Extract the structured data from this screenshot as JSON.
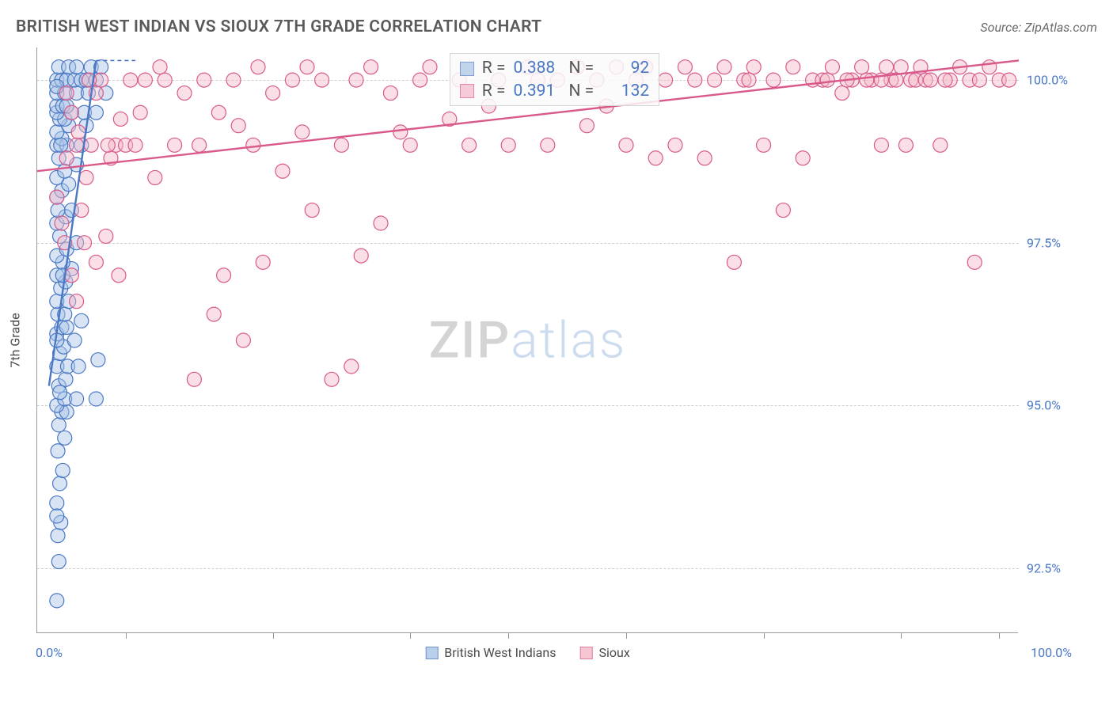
{
  "header": {
    "title": "BRITISH WEST INDIAN VS SIOUX 7TH GRADE CORRELATION CHART",
    "source": "Source: ZipAtlas.com"
  },
  "chart": {
    "type": "scatter",
    "ylabel": "7th Grade",
    "xlim": [
      0,
      100
    ],
    "ylim": [
      91.5,
      100.5
    ],
    "ymax_display": 100.3,
    "y_ticks": [
      92.5,
      95.0,
      97.5,
      100.0
    ],
    "y_tick_labels": [
      "92.5%",
      "95.0%",
      "97.5%",
      "100.0%"
    ],
    "x_ticks": [
      0,
      9.5,
      47.5,
      100
    ],
    "x_axis_labels": {
      "left": "0.0%",
      "right": "100.0%"
    },
    "bottom_tick_positions_pct": [
      9,
      24,
      38,
      48,
      60,
      74,
      88,
      98
    ],
    "background_color": "#ffffff",
    "grid_color": "#cfcfcf",
    "marker_radius": 9,
    "marker_stroke_width": 1.2,
    "series": [
      {
        "name": "British West Indians",
        "fill": "#a8c4e6",
        "fill_opacity": 0.45,
        "stroke": "#4a78c4",
        "r": 0.388,
        "n": 92,
        "trend": {
          "x1": 1.2,
          "y1": 95.3,
          "x2": 6.0,
          "y2": 100.3,
          "dash_to_x": 10.0
        },
        "points": [
          [
            2.0,
            92.0
          ],
          [
            2.2,
            92.6
          ],
          [
            2.1,
            93.0
          ],
          [
            2.4,
            93.2
          ],
          [
            2.0,
            93.5
          ],
          [
            2.3,
            93.8
          ],
          [
            2.6,
            94.0
          ],
          [
            2.1,
            94.3
          ],
          [
            2.8,
            94.5
          ],
          [
            2.2,
            94.7
          ],
          [
            2.5,
            94.9
          ],
          [
            3.0,
            94.9
          ],
          [
            2.0,
            95.0
          ],
          [
            2.8,
            95.1
          ],
          [
            4.0,
            95.1
          ],
          [
            6.0,
            95.1
          ],
          [
            2.2,
            95.3
          ],
          [
            2.9,
            95.4
          ],
          [
            2.0,
            95.6
          ],
          [
            3.1,
            95.6
          ],
          [
            4.2,
            95.6
          ],
          [
            6.2,
            95.7
          ],
          [
            2.3,
            95.8
          ],
          [
            2.7,
            95.9
          ],
          [
            3.8,
            96.0
          ],
          [
            2.0,
            96.1
          ],
          [
            2.5,
            96.2
          ],
          [
            3.0,
            96.2
          ],
          [
            4.5,
            96.3
          ],
          [
            2.1,
            96.4
          ],
          [
            2.8,
            96.4
          ],
          [
            2.0,
            96.6
          ],
          [
            3.2,
            96.6
          ],
          [
            2.4,
            96.8
          ],
          [
            2.9,
            96.9
          ],
          [
            2.0,
            97.0
          ],
          [
            3.5,
            97.1
          ],
          [
            2.6,
            97.2
          ],
          [
            2.0,
            97.3
          ],
          [
            3.0,
            97.4
          ],
          [
            4.0,
            97.5
          ],
          [
            2.3,
            97.6
          ],
          [
            2.0,
            97.8
          ],
          [
            2.9,
            97.9
          ],
          [
            3.5,
            98.0
          ],
          [
            2.0,
            98.2
          ],
          [
            2.5,
            98.3
          ],
          [
            3.2,
            98.4
          ],
          [
            2.0,
            98.5
          ],
          [
            2.8,
            98.6
          ],
          [
            4.0,
            98.7
          ],
          [
            2.2,
            98.8
          ],
          [
            2.0,
            99.0
          ],
          [
            3.0,
            99.0
          ],
          [
            4.5,
            99.0
          ],
          [
            2.5,
            99.1
          ],
          [
            2.0,
            99.2
          ],
          [
            3.2,
            99.3
          ],
          [
            5.0,
            99.3
          ],
          [
            2.3,
            99.4
          ],
          [
            2.8,
            99.4
          ],
          [
            2.0,
            99.5
          ],
          [
            3.5,
            99.5
          ],
          [
            4.8,
            99.5
          ],
          [
            6.0,
            99.5
          ],
          [
            2.0,
            99.6
          ],
          [
            2.6,
            99.6
          ],
          [
            3.0,
            99.6
          ],
          [
            2.0,
            99.8
          ],
          [
            2.8,
            99.8
          ],
          [
            4.0,
            99.8
          ],
          [
            5.2,
            99.8
          ],
          [
            7.0,
            99.8
          ],
          [
            2.0,
            100.0
          ],
          [
            2.5,
            100.0
          ],
          [
            3.0,
            100.0
          ],
          [
            3.8,
            100.0
          ],
          [
            4.5,
            100.0
          ],
          [
            5.0,
            100.0
          ],
          [
            6.0,
            100.0
          ],
          [
            2.2,
            100.2
          ],
          [
            3.2,
            100.2
          ],
          [
            4.0,
            100.2
          ],
          [
            5.5,
            100.2
          ],
          [
            6.5,
            100.2
          ],
          [
            2.0,
            99.9
          ],
          [
            2.4,
            99.0
          ],
          [
            2.1,
            98.0
          ],
          [
            2.6,
            97.0
          ],
          [
            2.0,
            96.0
          ],
          [
            2.3,
            95.2
          ],
          [
            2.0,
            93.3
          ]
        ]
      },
      {
        "name": "Sioux",
        "fill": "#f5b8c8",
        "fill_opacity": 0.45,
        "stroke": "#d95a8a",
        "r": 0.391,
        "n": 132,
        "trend": {
          "x1": 0,
          "y1": 98.6,
          "x2": 100,
          "y2": 100.3
        },
        "points": [
          [
            2.0,
            98.2
          ],
          [
            2.5,
            97.8
          ],
          [
            2.8,
            97.5
          ],
          [
            3.0,
            99.8
          ],
          [
            3.5,
            97.0
          ],
          [
            4.0,
            96.6
          ],
          [
            4.2,
            99.2
          ],
          [
            4.5,
            98.0
          ],
          [
            5.0,
            98.5
          ],
          [
            5.5,
            99.0
          ],
          [
            6.0,
            97.2
          ],
          [
            6.5,
            100.0
          ],
          [
            7.0,
            97.6
          ],
          [
            7.5,
            98.8
          ],
          [
            8.0,
            99.0
          ],
          [
            8.5,
            99.4
          ],
          [
            9.0,
            99.0
          ],
          [
            10.0,
            99.0
          ],
          [
            10.5,
            99.5
          ],
          [
            11.0,
            100.0
          ],
          [
            12.0,
            98.5
          ],
          [
            12.5,
            100.2
          ],
          [
            13.0,
            100.0
          ],
          [
            14.0,
            99.0
          ],
          [
            15.0,
            99.8
          ],
          [
            16.0,
            95.4
          ],
          [
            16.5,
            99.0
          ],
          [
            17.0,
            100.0
          ],
          [
            18.0,
            96.4
          ],
          [
            18.5,
            99.5
          ],
          [
            19.0,
            97.0
          ],
          [
            20.0,
            100.0
          ],
          [
            20.5,
            99.3
          ],
          [
            21.0,
            96.0
          ],
          [
            22.0,
            99.0
          ],
          [
            22.5,
            100.2
          ],
          [
            23.0,
            97.2
          ],
          [
            24.0,
            99.8
          ],
          [
            25.0,
            98.6
          ],
          [
            26.0,
            100.0
          ],
          [
            27.0,
            99.2
          ],
          [
            27.5,
            100.2
          ],
          [
            28.0,
            98.0
          ],
          [
            29.0,
            100.0
          ],
          [
            30.0,
            95.4
          ],
          [
            31.0,
            99.0
          ],
          [
            32.0,
            95.6
          ],
          [
            32.5,
            100.0
          ],
          [
            33.0,
            97.3
          ],
          [
            34.0,
            100.2
          ],
          [
            35.0,
            97.8
          ],
          [
            36.0,
            99.8
          ],
          [
            37.0,
            99.2
          ],
          [
            38.0,
            99.0
          ],
          [
            39.0,
            100.0
          ],
          [
            40.0,
            100.2
          ],
          [
            42.0,
            99.4
          ],
          [
            43.0,
            100.0
          ],
          [
            44.0,
            99.0
          ],
          [
            46.0,
            99.6
          ],
          [
            47.0,
            100.0
          ],
          [
            48.0,
            99.0
          ],
          [
            50.0,
            100.2
          ],
          [
            51.0,
            100.0
          ],
          [
            52.0,
            99.0
          ],
          [
            53.0,
            100.0
          ],
          [
            55.0,
            100.2
          ],
          [
            56.0,
            99.3
          ],
          [
            57.0,
            100.0
          ],
          [
            58.0,
            99.6
          ],
          [
            59.0,
            100.2
          ],
          [
            60.0,
            99.0
          ],
          [
            61.0,
            100.0
          ],
          [
            62.0,
            100.2
          ],
          [
            63.0,
            98.8
          ],
          [
            64.0,
            100.0
          ],
          [
            65.0,
            99.0
          ],
          [
            66.0,
            100.2
          ],
          [
            67.0,
            100.0
          ],
          [
            68.0,
            98.8
          ],
          [
            69.0,
            100.0
          ],
          [
            70.0,
            100.2
          ],
          [
            71.0,
            97.2
          ],
          [
            72.0,
            100.0
          ],
          [
            73.0,
            100.2
          ],
          [
            74.0,
            99.0
          ],
          [
            75.0,
            100.0
          ],
          [
            76.0,
            98.0
          ],
          [
            77.0,
            100.2
          ],
          [
            78.0,
            98.8
          ],
          [
            79.0,
            100.0
          ],
          [
            80.0,
            100.0
          ],
          [
            81.0,
            100.2
          ],
          [
            82.0,
            99.8
          ],
          [
            83.0,
            100.0
          ],
          [
            84.0,
            100.2
          ],
          [
            85.0,
            100.0
          ],
          [
            86.0,
            99.0
          ],
          [
            86.5,
            100.2
          ],
          [
            87.0,
            100.0
          ],
          [
            87.5,
            100.0
          ],
          [
            88.0,
            100.2
          ],
          [
            88.5,
            99.0
          ],
          [
            89.0,
            100.0
          ],
          [
            89.5,
            100.0
          ],
          [
            90.0,
            100.2
          ],
          [
            90.5,
            100.0
          ],
          [
            91.0,
            100.0
          ],
          [
            92.0,
            99.0
          ],
          [
            93.0,
            100.0
          ],
          [
            94.0,
            100.2
          ],
          [
            95.0,
            100.0
          ],
          [
            95.5,
            97.2
          ],
          [
            96.0,
            100.0
          ],
          [
            97.0,
            100.2
          ],
          [
            98.0,
            100.0
          ],
          [
            99.0,
            100.0
          ],
          [
            92.5,
            100.0
          ],
          [
            86.0,
            100.0
          ],
          [
            84.5,
            100.0
          ],
          [
            82.5,
            100.0
          ],
          [
            80.5,
            100.0
          ],
          [
            72.5,
            100.0
          ],
          [
            3.0,
            98.8
          ],
          [
            3.5,
            99.5
          ],
          [
            4.0,
            99.0
          ],
          [
            4.8,
            97.5
          ],
          [
            5.3,
            100.0
          ],
          [
            6.0,
            99.8
          ],
          [
            7.2,
            99.0
          ],
          [
            8.3,
            97.0
          ],
          [
            9.5,
            100.0
          ]
        ]
      }
    ],
    "legend": {
      "items": [
        {
          "label": "British West Indians",
          "fill": "#a8c4e6",
          "stroke": "#4a78c4"
        },
        {
          "label": "Sioux",
          "fill": "#f5b8c8",
          "stroke": "#d95a8a"
        }
      ]
    },
    "stats_box": {
      "left_pct": 42,
      "top_pct": 1
    },
    "watermark": {
      "part1": "ZIP",
      "part2": "atlas"
    }
  }
}
